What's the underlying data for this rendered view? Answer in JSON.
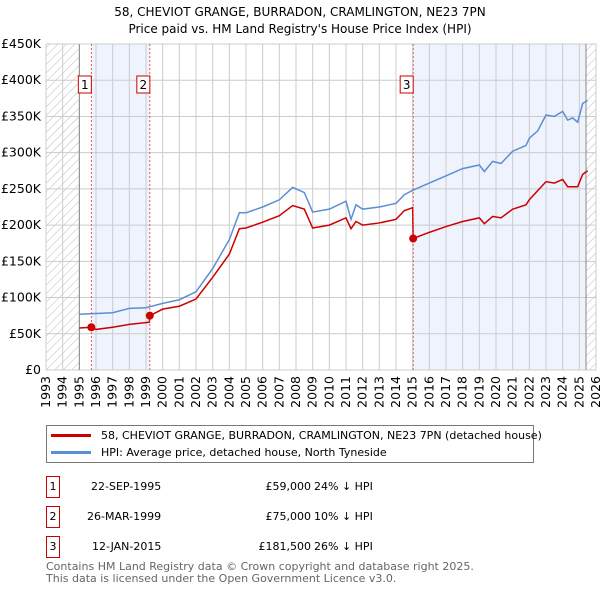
{
  "chart_data": {
    "type": "line",
    "title": "58, CHEVIOT GRANGE, BURRADON, CRAMLINGTON, NE23 7PN",
    "subtitle": "Price paid vs. HM Land Registry's House Price Index (HPI)",
    "xlim": [
      1993,
      2026
    ],
    "ylim": [
      0,
      450000
    ],
    "x_ticks": [
      "1993",
      "1994",
      "1995",
      "1996",
      "1997",
      "1998",
      "1999",
      "2000",
      "2001",
      "2002",
      "2003",
      "2004",
      "2005",
      "2006",
      "2007",
      "2008",
      "2009",
      "2010",
      "2011",
      "2012",
      "2013",
      "2014",
      "2015",
      "2016",
      "2017",
      "2018",
      "2019",
      "2020",
      "2021",
      "2022",
      "2023",
      "2024",
      "2025",
      "2026"
    ],
    "y_ticks": [
      {
        "v": 0,
        "label": "£0"
      },
      {
        "v": 50000,
        "label": "£50K"
      },
      {
        "v": 100000,
        "label": "£100K"
      },
      {
        "v": 150000,
        "label": "£150K"
      },
      {
        "v": 200000,
        "label": "£200K"
      },
      {
        "v": 250000,
        "label": "£250K"
      },
      {
        "v": 300000,
        "label": "£300K"
      },
      {
        "v": 350000,
        "label": "£350K"
      },
      {
        "v": 400000,
        "label": "£400K"
      },
      {
        "v": 450000,
        "label": "£450K"
      }
    ],
    "grid": true,
    "series": [
      {
        "name": "58, CHEVIOT GRANGE, BURRADON, CRAMLINGTON, NE23 7PN (detached house)",
        "color": "#cc0000",
        "x": [
          1995,
          1995.7,
          1996,
          1997,
          1998,
          1999.2,
          1999.23,
          2000,
          2001,
          2002,
          2003,
          2004,
          2004.6,
          2005,
          2006,
          2007,
          2007.8,
          2008.5,
          2009,
          2010,
          2011,
          2011.3,
          2011.6,
          2012,
          2013,
          2014,
          2014.5,
          2015,
          2015.03,
          2016,
          2017,
          2018,
          2019,
          2019.3,
          2019.8,
          2020.3,
          2021,
          2021.8,
          2022,
          2023,
          2023.5,
          2024,
          2024.3,
          2024.9,
          2025.2,
          2025.5
        ],
        "y": [
          58000,
          59000,
          56000,
          59000,
          63000,
          66000,
          75000,
          84000,
          88000,
          98000,
          128000,
          160000,
          195000,
          196000,
          204000,
          213000,
          227000,
          222000,
          196000,
          200000,
          210000,
          195000,
          205000,
          200000,
          203000,
          208000,
          220000,
          224000,
          181500,
          190000,
          198000,
          205000,
          210000,
          202000,
          212000,
          210000,
          222000,
          228000,
          235000,
          260000,
          258000,
          263000,
          253000,
          253000,
          270000,
          275000
        ]
      },
      {
        "name": "HPI: Average price, detached house, North Tyneside",
        "color": "#5b8fd4",
        "x": [
          1995,
          1996,
          1997,
          1998,
          1999,
          2000,
          2001,
          2002,
          2003,
          2004,
          2004.6,
          2005,
          2006,
          2007,
          2007.8,
          2008.5,
          2009,
          2010,
          2011,
          2011.3,
          2011.6,
          2012,
          2013,
          2014,
          2014.5,
          2015,
          2016,
          2017,
          2018,
          2019,
          2019.3,
          2019.8,
          2020.3,
          2021,
          2021.8,
          2022,
          2022.5,
          2023,
          2023.5,
          2024,
          2024.3,
          2024.6,
          2024.9,
          2025.2,
          2025.5
        ],
        "y": [
          77000,
          78000,
          79000,
          85000,
          86000,
          92000,
          97000,
          108000,
          140000,
          180000,
          217000,
          217000,
          225000,
          235000,
          252000,
          245000,
          218000,
          222000,
          233000,
          208000,
          228000,
          222000,
          225000,
          230000,
          242000,
          248000,
          258000,
          268000,
          278000,
          283000,
          274000,
          288000,
          285000,
          302000,
          310000,
          320000,
          330000,
          352000,
          350000,
          357000,
          345000,
          348000,
          342000,
          368000,
          372000
        ]
      }
    ],
    "sales": [
      {
        "label": "1",
        "x": 1995.72,
        "price": 59000,
        "date": "22-SEP-1995",
        "price_text": "£59,000",
        "hpi": "24% ↓ HPI"
      },
      {
        "label": "2",
        "x": 1999.23,
        "price": 75000,
        "date": "26-MAR-1999",
        "price_text": "£75,000",
        "hpi": "10% ↓ HPI"
      },
      {
        "label": "3",
        "x": 2015.03,
        "price": 181500,
        "date": "12-JAN-2015",
        "price_text": "£181,500",
        "hpi": "26% ↓ HPI"
      }
    ],
    "shaded_ranges": [
      [
        1995.72,
        1999.23
      ],
      [
        2015.03,
        2025.4
      ]
    ],
    "hatched_ranges": [
      [
        1993,
        1995
      ],
      [
        2025.4,
        2026
      ]
    ],
    "legend_position": "below"
  },
  "footer": {
    "line1": "Contains HM Land Registry data © Crown copyright and database right 2025.",
    "line2": "This data is licensed under the Open Government Licence v3.0."
  }
}
